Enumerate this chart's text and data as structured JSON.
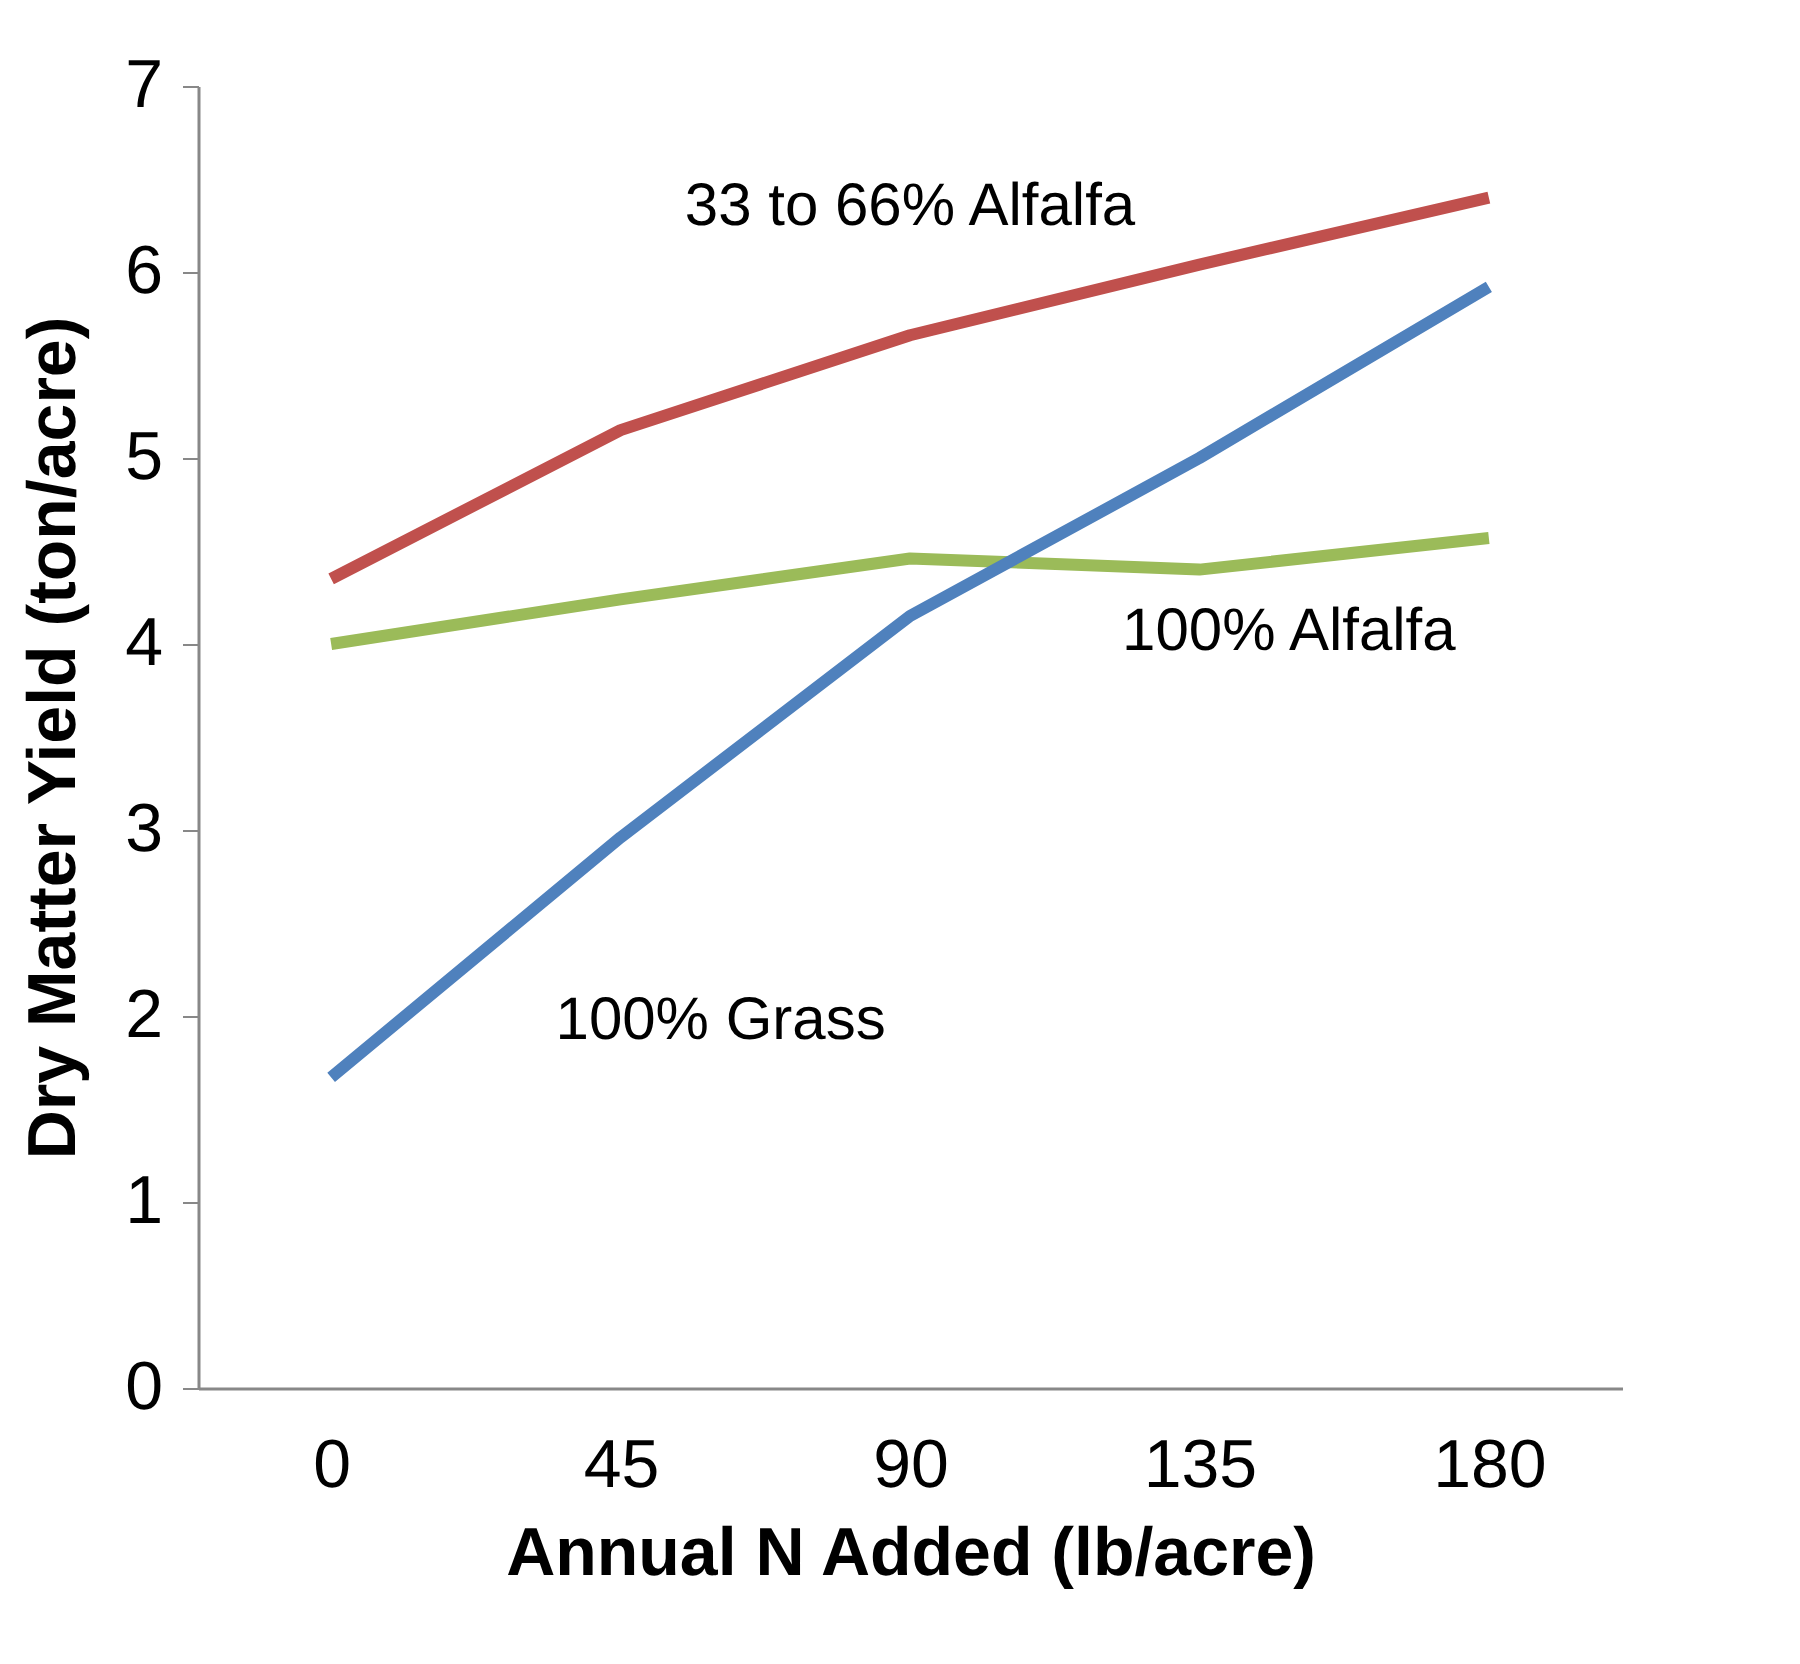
{
  "chart_data": {
    "type": "line",
    "xlabel": "Annual N Added (lb/acre)",
    "ylabel": "Dry Matter Yield (ton/acre)",
    "categories": [
      "0",
      "45",
      "90",
      "135",
      "180"
    ],
    "series": [
      {
        "name": "33 to 66% Alfalfa",
        "color": "#c0504d",
        "values": [
          4.35,
          5.15,
          5.66,
          6.04,
          6.4
        ]
      },
      {
        "name": "100% Alfalfa",
        "color": "#9bbb59",
        "values": [
          4.0,
          4.24,
          4.46,
          4.4,
          4.57
        ]
      },
      {
        "name": "100% Grass",
        "color": "#4f81bd",
        "values": [
          1.67,
          2.96,
          4.15,
          5.0,
          5.92
        ]
      }
    ],
    "ylim": [
      0,
      7
    ],
    "yticks": [
      0,
      1,
      2,
      3,
      4,
      5,
      6,
      7
    ],
    "grid": false,
    "legend": false,
    "marker": "none",
    "line_style": "solid"
  }
}
